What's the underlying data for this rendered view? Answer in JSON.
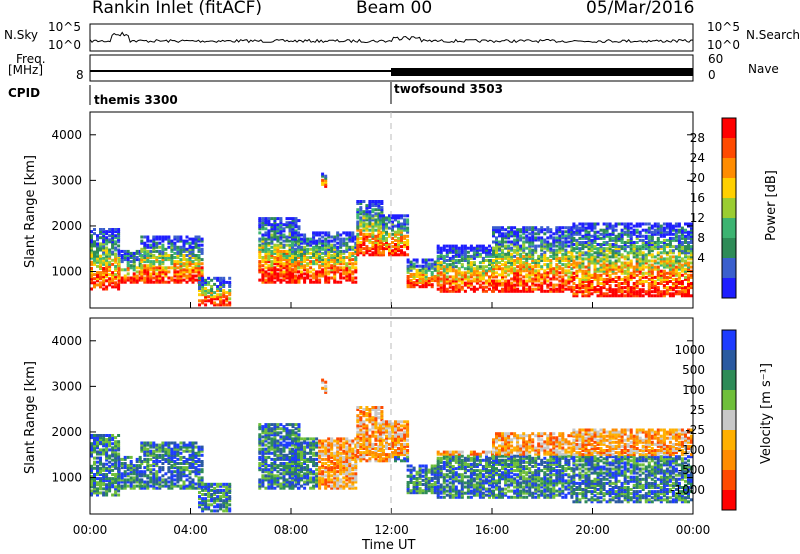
{
  "header": {
    "station": "Rankin Inlet (fitACF)",
    "beam": "Beam 00",
    "date": "05/Mar/2016"
  },
  "noise_panel": {
    "left_label": "N.Sky",
    "right_label": "N.Search",
    "left_ticks": [
      "10^5",
      "10^0"
    ],
    "right_ticks": [
      "10^5",
      "10^0"
    ]
  },
  "freq_panel": {
    "left_label_1": "Freq.",
    "left_label_2": "[MHz]",
    "right_label": "Nave",
    "left_ticks": [
      "8"
    ],
    "right_ticks": [
      "60",
      "0"
    ]
  },
  "cpid_panel": {
    "label": "CPID",
    "programs": [
      {
        "name": "themis 3300",
        "start_hour": 0
      },
      {
        "name": "twofsound 3503",
        "start_hour": 12
      }
    ]
  },
  "power_colorbar": {
    "label": "Power [dB]",
    "ticks": [
      "28",
      "24",
      "20",
      "16",
      "12",
      "8",
      "4"
    ],
    "colors": [
      "#ff0000",
      "#ff4a00",
      "#ff8c00",
      "#ffd000",
      "#9acd32",
      "#3cb371",
      "#2e8b57",
      "#3a5fcd",
      "#1e1eff"
    ]
  },
  "velocity_colorbar": {
    "label": "Velocity [m s⁻¹]",
    "ticks": [
      "1000",
      "500",
      "100",
      "25",
      "-25",
      "-100",
      "-500",
      "-1000"
    ],
    "colors": [
      "#1e3cff",
      "#2a5aa0",
      "#2e8b57",
      "#6fbf3a",
      "#c8c8c8",
      "#ffb000",
      "#ff8c00",
      "#ff4a00",
      "#ff0000"
    ]
  },
  "chart_data": [
    {
      "type": "heatmap",
      "panel": "power",
      "ylabel": "Slant Range [km]",
      "ylim": [
        200,
        4500
      ],
      "xlim": [
        0,
        24
      ],
      "y_ticks": [
        1000,
        2000,
        3000,
        4000
      ],
      "regions": [
        {
          "t0": 0.0,
          "t1": 1.1,
          "r0": 650,
          "r1": 2000
        },
        {
          "t0": 1.1,
          "t1": 2.0,
          "r0": 800,
          "r1": 1500
        },
        {
          "t0": 2.0,
          "t1": 4.5,
          "r0": 800,
          "r1": 1800
        },
        {
          "t0": 4.3,
          "t1": 5.6,
          "r0": 300,
          "r1": 900
        },
        {
          "t0": 6.7,
          "t1": 8.3,
          "r0": 800,
          "r1": 2200
        },
        {
          "t0": 8.0,
          "t1": 10.6,
          "r0": 800,
          "r1": 1900
        },
        {
          "t0": 9.2,
          "t1": 9.4,
          "r0": 2900,
          "r1": 3200
        },
        {
          "t0": 10.6,
          "t1": 11.6,
          "r0": 1400,
          "r1": 2600
        },
        {
          "t0": 11.5,
          "t1": 12.6,
          "r0": 1400,
          "r1": 2300
        },
        {
          "t0": 12.6,
          "t1": 13.8,
          "r0": 700,
          "r1": 1300
        },
        {
          "t0": 13.8,
          "t1": 16.0,
          "r0": 600,
          "r1": 1600
        },
        {
          "t0": 16.0,
          "t1": 19.2,
          "r0": 600,
          "r1": 2000
        },
        {
          "t0": 19.2,
          "t1": 24.0,
          "r0": 500,
          "r1": 2100
        }
      ]
    },
    {
      "type": "heatmap",
      "panel": "velocity",
      "ylabel": "Slant Range [km]",
      "ylim": [
        200,
        4500
      ],
      "xlim": [
        0,
        24
      ],
      "y_ticks": [
        1000,
        2000,
        3000,
        4000
      ],
      "x_ticks": [
        "00:00",
        "04:00",
        "08:00",
        "12:00",
        "16:00",
        "20:00",
        "00:00"
      ],
      "xlabel": "Time UT"
    }
  ]
}
